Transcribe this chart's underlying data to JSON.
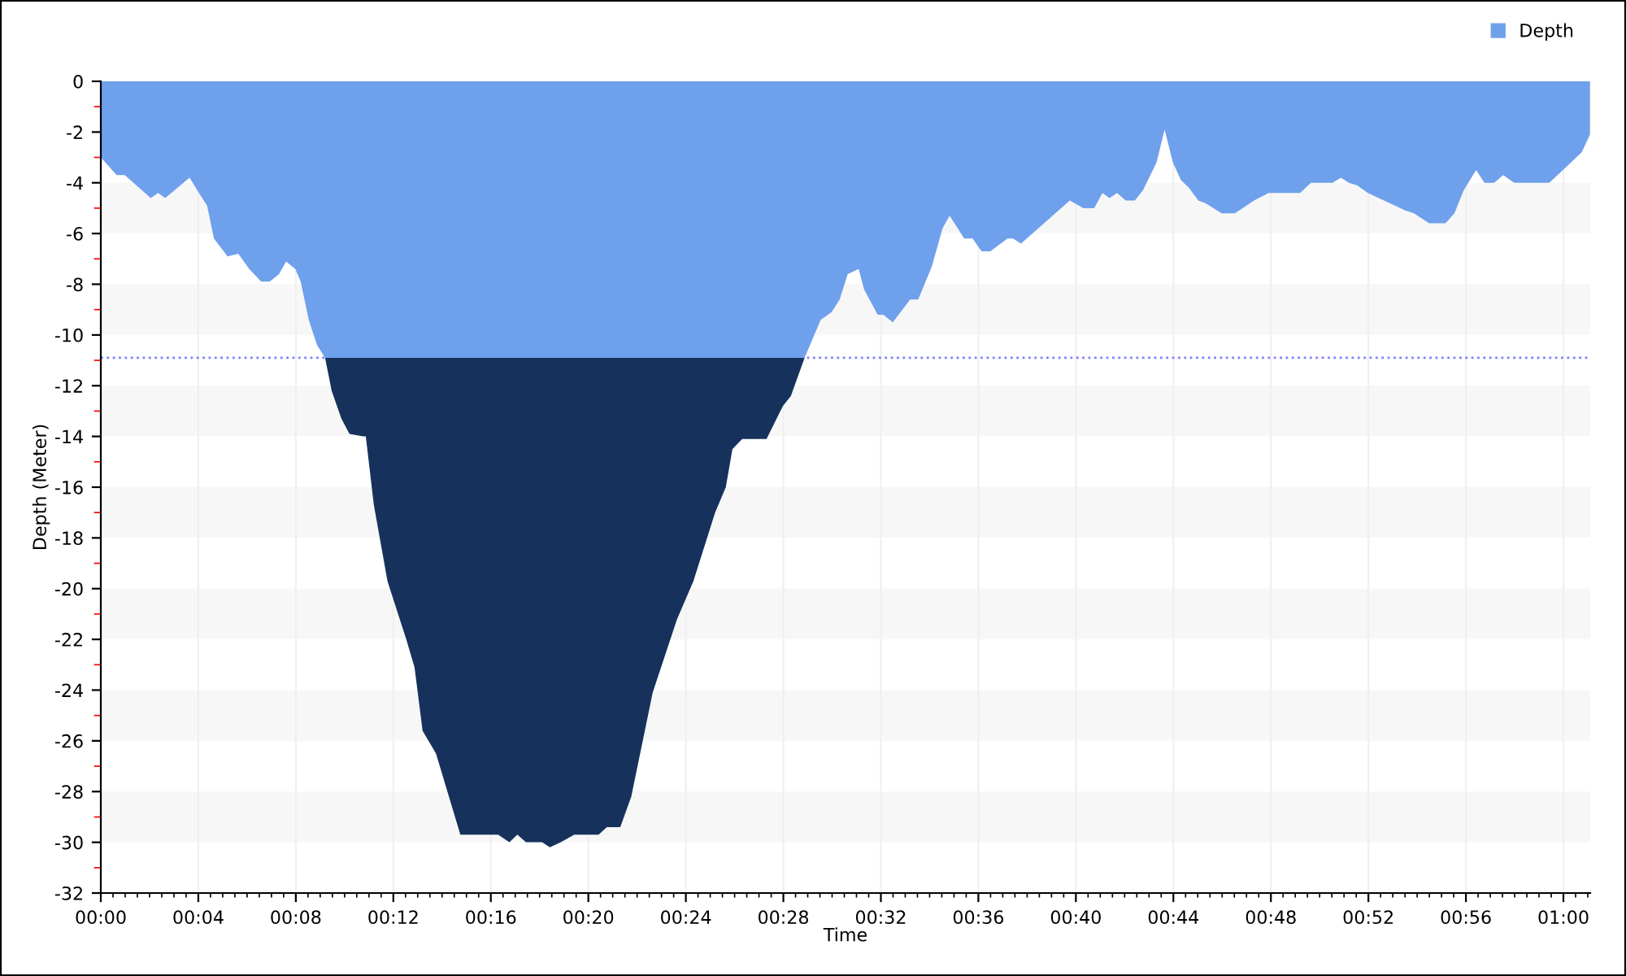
{
  "chart_data": {
    "type": "area",
    "stacked": true,
    "xlabel": "Time",
    "ylabel": "Depth (Meter)",
    "x": [
      0,
      0.65,
      0.98,
      2.05,
      2.35,
      2.64,
      3.64,
      4.09,
      4.36,
      4.64,
      5.2,
      5.64,
      6.09,
      6.58,
      6.93,
      7.31,
      7.6,
      7.98,
      8.2,
      8.53,
      8.87,
      9.2,
      9.47,
      9.87,
      10.2,
      10.76,
      10.87,
      11.2,
      11.76,
      12.53,
      12.87,
      13.2,
      13.75,
      14.75,
      16.3,
      16.76,
      17.09,
      17.44,
      18.1,
      18.42,
      18.87,
      19.42,
      20.42,
      20.76,
      21.31,
      21.76,
      22.64,
      23.64,
      24.31,
      25.2,
      25.64,
      25.91,
      26.31,
      27.31,
      27.98,
      28.31,
      28.87,
      29.53,
      29.98,
      30.31,
      30.64,
      31.09,
      31.31,
      31.87,
      32.1,
      32.49,
      33.2,
      33.53,
      34.09,
      34.53,
      34.82,
      35.42,
      35.76,
      36.13,
      36.49,
      37.2,
      37.42,
      37.75,
      39.75,
      40.31,
      40.75,
      41.09,
      41.38,
      41.69,
      42.04,
      42.42,
      42.75,
      43.31,
      43.64,
      43.98,
      44.31,
      44.64,
      45.02,
      45.31,
      45.98,
      46.53,
      47.31,
      47.91,
      49.2,
      49.64,
      50.53,
      50.87,
      51.2,
      51.53,
      51.98,
      52.42,
      53.09,
      53.53,
      53.87,
      54.49,
      55.16,
      55.53,
      55.91,
      56.42,
      56.76,
      57.16,
      57.53,
      57.98,
      59.42,
      60.09,
      60.75,
      61.09
    ],
    "series": [
      {
        "name": "Depth",
        "color": "#6fa0ec",
        "values": [
          -3.0,
          -3.7,
          -3.7,
          -4.6,
          -4.4,
          -4.6,
          -3.8,
          -4.5,
          -4.9,
          -6.2,
          -6.9,
          -6.8,
          -7.4,
          -7.9,
          -7.9,
          -7.6,
          -7.1,
          -7.4,
          -7.9,
          -9.4,
          -10.4,
          -10.9,
          -10.9,
          -10.9,
          -10.9,
          -10.9,
          -10.9,
          -10.9,
          -10.9,
          -10.9,
          -10.9,
          -10.9,
          -10.9,
          -10.9,
          -10.9,
          -10.9,
          -10.9,
          -10.9,
          -10.9,
          -10.9,
          -10.9,
          -10.9,
          -10.9,
          -10.9,
          -10.9,
          -10.9,
          -10.9,
          -10.9,
          -10.9,
          -10.9,
          -10.9,
          -10.9,
          -10.9,
          -10.9,
          -10.9,
          -10.9,
          -10.9,
          -9.4,
          -9.1,
          -8.6,
          -7.6,
          -7.4,
          -8.2,
          -9.2,
          -9.2,
          -9.5,
          -8.6,
          -8.6,
          -7.3,
          -5.8,
          -5.3,
          -6.2,
          -6.2,
          -6.7,
          -6.7,
          -6.2,
          -6.2,
          -6.4,
          -4.7,
          -5.0,
          -5.0,
          -4.4,
          -4.6,
          -4.4,
          -4.7,
          -4.7,
          -4.3,
          -3.2,
          -1.9,
          -3.2,
          -3.9,
          -4.2,
          -4.7,
          -4.8,
          -5.2,
          -5.2,
          -4.7,
          -4.4,
          -4.4,
          -4.0,
          -4.0,
          -3.8,
          -4.0,
          -4.1,
          -4.4,
          -4.6,
          -4.9,
          -5.1,
          -5.2,
          -5.6,
          -5.6,
          -5.2,
          -4.3,
          -3.5,
          -4.0,
          -4.0,
          -3.7,
          -4.0,
          -4.0,
          -3.4,
          -2.8,
          -2.1
        ]
      },
      {
        "color": "#16325c",
        "values": [
          0,
          0,
          0,
          0,
          0,
          0,
          0,
          0,
          0,
          0,
          0,
          0,
          0,
          0,
          0,
          0,
          0,
          0,
          0,
          0,
          0,
          0,
          -1.3,
          -2.4,
          -3.0,
          -3.1,
          -3.1,
          -5.8,
          -8.8,
          -11.1,
          -12.2,
          -14.7,
          -15.6,
          -18.8,
          -18.8,
          -19.1,
          -18.8,
          -19.1,
          -19.1,
          -19.3,
          -19.1,
          -18.8,
          -18.8,
          -18.5,
          -18.5,
          -17.3,
          -13.2,
          -10.3,
          -8.8,
          -6.1,
          -5.1,
          -3.6,
          -3.2,
          -3.2,
          -1.9,
          -1.5,
          0,
          0,
          0,
          0,
          0,
          0,
          0,
          0,
          0,
          0,
          0,
          0,
          0,
          0,
          0,
          0,
          0,
          0,
          0,
          0,
          0,
          0,
          0,
          0,
          0,
          0,
          0,
          0,
          0,
          0,
          0,
          0,
          0,
          0,
          0,
          0,
          0,
          0,
          0,
          0,
          0,
          0,
          0,
          0,
          0,
          0,
          0,
          0,
          0,
          0,
          0,
          0,
          0,
          0,
          0,
          0,
          0,
          0,
          0,
          0,
          0,
          0,
          0,
          0,
          0,
          0
        ]
      }
    ],
    "xlim": [
      0,
      61.1
    ],
    "xticks": [
      {
        "value": 0,
        "label": "00:00"
      },
      {
        "value": 4,
        "label": "00:04"
      },
      {
        "value": 8,
        "label": "00:08"
      },
      {
        "value": 12,
        "label": "00:12"
      },
      {
        "value": 16,
        "label": "00:16"
      },
      {
        "value": 20,
        "label": "00:20"
      },
      {
        "value": 24,
        "label": "00:24"
      },
      {
        "value": 28,
        "label": "00:28"
      },
      {
        "value": 32,
        "label": "00:32"
      },
      {
        "value": 36,
        "label": "00:36"
      },
      {
        "value": 40,
        "label": "00:40"
      },
      {
        "value": 44,
        "label": "00:44"
      },
      {
        "value": 48,
        "label": "00:48"
      },
      {
        "value": 52,
        "label": "00:52"
      },
      {
        "value": 56,
        "label": "00:56"
      },
      {
        "value": 60,
        "label": "01:00"
      }
    ],
    "ylim": [
      -32,
      0
    ],
    "yticks": [
      0,
      -2,
      -4,
      -6,
      -8,
      -10,
      -12,
      -14,
      -16,
      -18,
      -20,
      -22,
      -24,
      -26,
      -28,
      -30,
      -32
    ],
    "ref_lines": [
      {
        "axis": "y",
        "value": -10.9,
        "color": "#8080ff",
        "line_style": "dotted"
      }
    ],
    "grid": true,
    "legend": "top right"
  }
}
